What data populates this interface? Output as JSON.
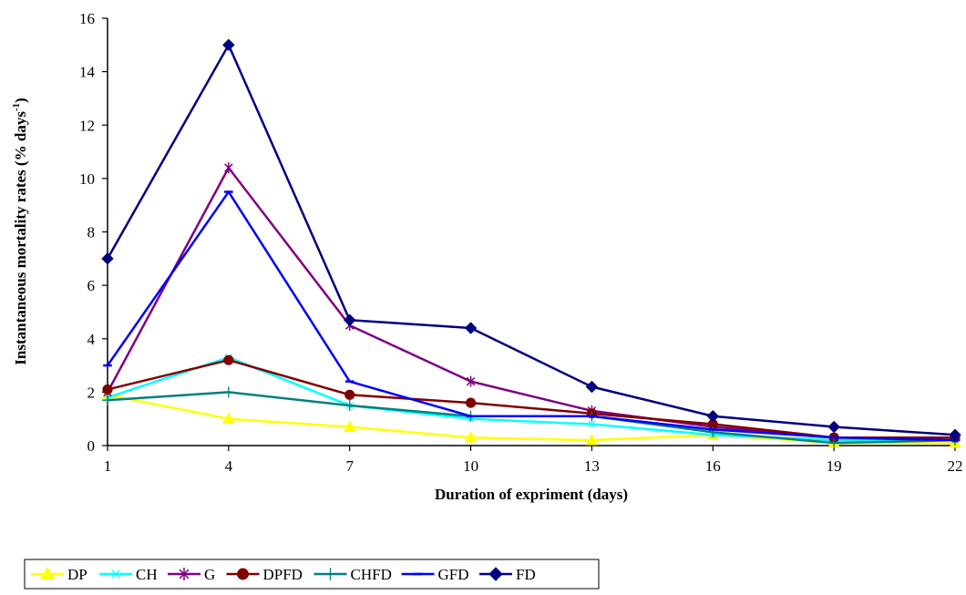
{
  "chart_data": {
    "type": "line",
    "title": "",
    "xlabel": "Duration of expriment (days)",
    "ylabel": "Instantaneous mortality rates (% days",
    "ylabel_superscript": "-1",
    "ylabel_suffix": ")",
    "x": [
      1,
      4,
      7,
      10,
      13,
      16,
      19,
      22
    ],
    "xlim": [
      1,
      22
    ],
    "ylim": [
      0,
      16
    ],
    "yticks": [
      0,
      2,
      4,
      6,
      8,
      10,
      12,
      14,
      16
    ],
    "grid": false,
    "legend_position": "bottom-left",
    "series": [
      {
        "name": "DP",
        "color": "#ffff00",
        "marker": "triangle",
        "values": [
          1.9,
          1.0,
          0.7,
          0.3,
          0.2,
          0.4,
          0.1,
          0.1
        ]
      },
      {
        "name": "CH",
        "color": "#00ffff",
        "marker": "x",
        "values": [
          1.8,
          3.3,
          1.5,
          1.0,
          0.8,
          0.4,
          0.2,
          0.2
        ]
      },
      {
        "name": "G",
        "color": "#800080",
        "marker": "star",
        "values": [
          2.0,
          10.4,
          4.5,
          2.4,
          1.3,
          0.7,
          0.3,
          0.3
        ]
      },
      {
        "name": "DPFD",
        "color": "#800000",
        "marker": "circle",
        "values": [
          2.1,
          3.2,
          1.9,
          1.6,
          1.2,
          0.8,
          0.3,
          0.3
        ]
      },
      {
        "name": "CHFD",
        "color": "#008080",
        "marker": "plus",
        "values": [
          1.7,
          2.0,
          1.5,
          1.1,
          1.1,
          0.5,
          0.1,
          0.2
        ]
      },
      {
        "name": "GFD",
        "color": "#0000ff",
        "marker": "dash",
        "values": [
          3.0,
          9.5,
          2.4,
          1.1,
          1.1,
          0.6,
          0.3,
          0.2
        ]
      },
      {
        "name": "FD",
        "color": "#000080",
        "marker": "diamond",
        "values": [
          7.0,
          15.0,
          4.7,
          4.4,
          2.2,
          1.1,
          0.7,
          0.4
        ]
      }
    ]
  }
}
